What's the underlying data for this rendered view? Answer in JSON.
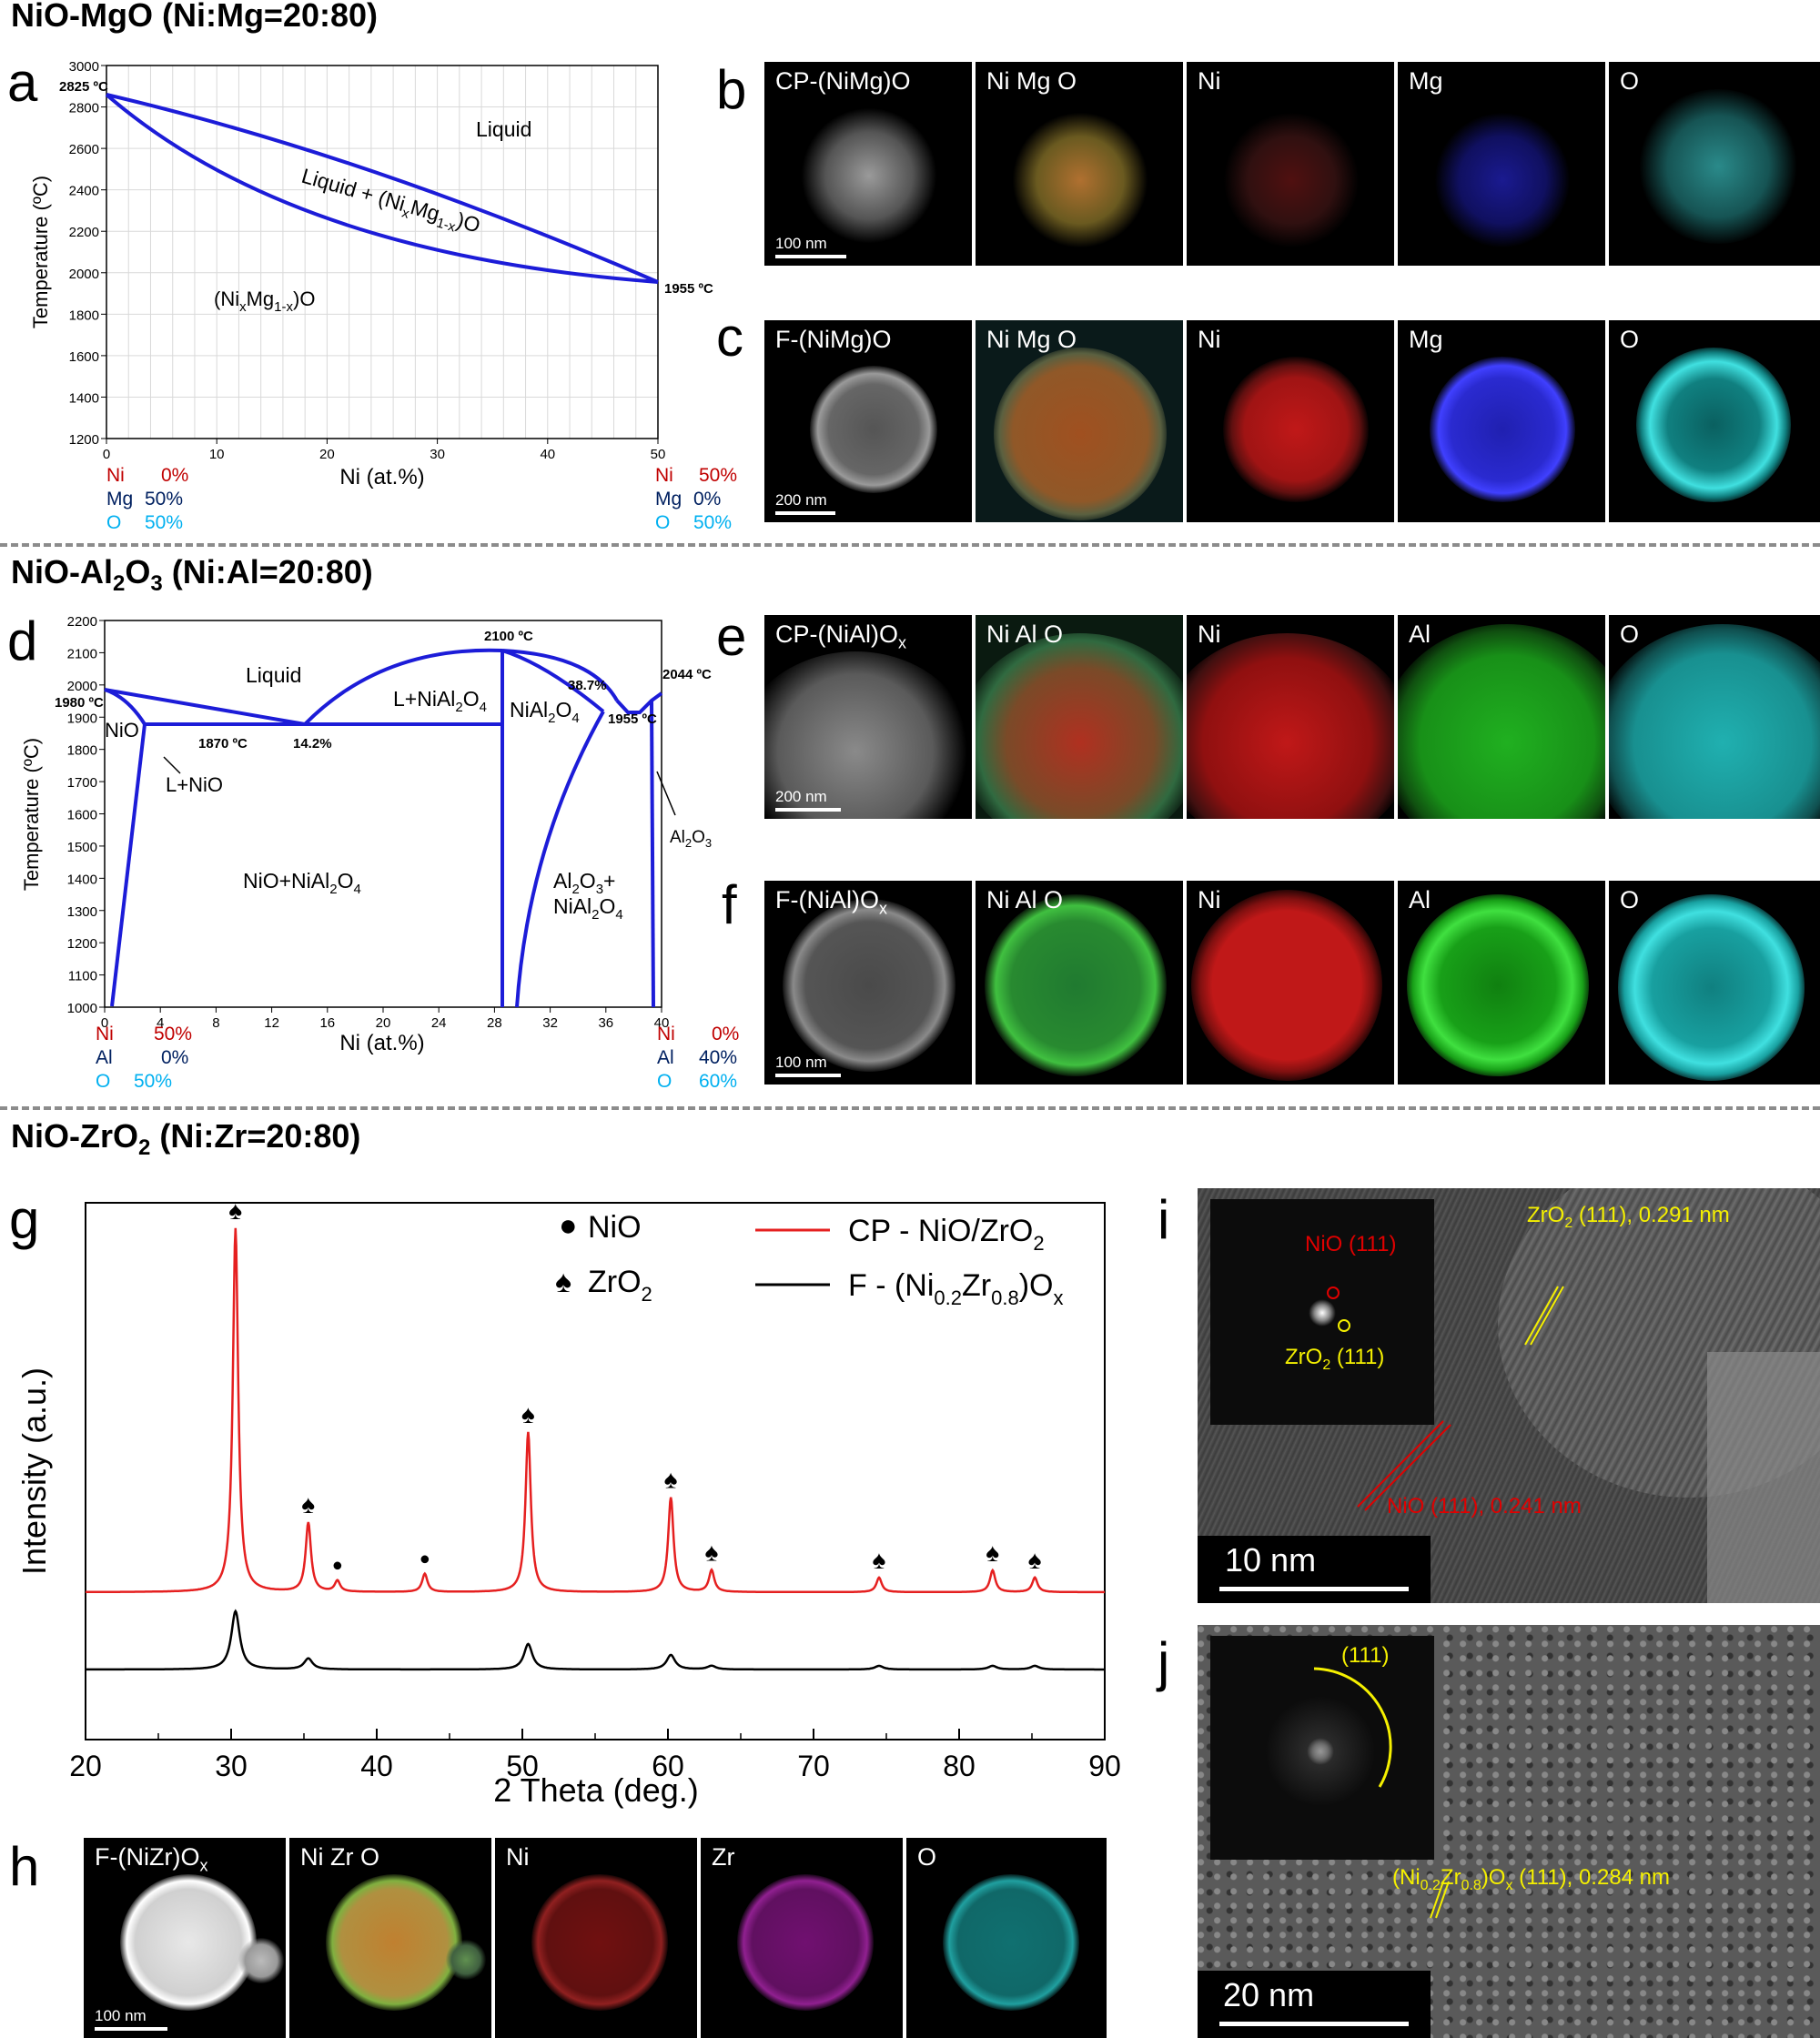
{
  "sections": {
    "mgo": {
      "pre": "NiO-MgO (Ni:Mg=20:80)"
    },
    "al": {
      "pre": "NiO-Al",
      "sub1": "2",
      "mid": "O",
      "sub2": "3",
      "post": " (Ni:Al=20:80)"
    },
    "zr": {
      "pre": "NiO-ZrO",
      "sub1": "2",
      "post": " (Ni:Zr=20:80)"
    }
  },
  "panel_letters": {
    "a": "a",
    "b": "b",
    "c": "c",
    "d": "d",
    "e": "e",
    "f": "f",
    "g": "g",
    "h": "h",
    "i": "i",
    "j": "j"
  },
  "panel_a": {
    "ylabel": "Temperature (ºC)",
    "xlabel": "Ni (at.%)",
    "yticks": [
      "1200",
      "1400",
      "1600",
      "1800",
      "2000",
      "2200",
      "2400",
      "2600",
      "2800",
      "3000"
    ],
    "xticks": [
      "0",
      "10",
      "20",
      "30",
      "40",
      "50"
    ],
    "liquid": "Liquid",
    "two_phase_pre": "Liquid + (Ni",
    "two_phase_x": "x",
    "two_phase_mid": "Mg",
    "two_phase_sub": "1-x",
    "two_phase_post": ")O",
    "solid_pre": "(Ni",
    "solid_x": "x",
    "solid_mid": "Mg",
    "solid_sub": "1-x",
    "solid_post": ")O",
    "t_left": "2825 ºC",
    "t_right": "1955 ºC",
    "comp_left": {
      "ni": "Ni",
      "ni_v": "0%",
      "m": "Mg",
      "m_v": "50%",
      "o": "O",
      "o_v": "50%"
    },
    "comp_right": {
      "ni": "Ni",
      "ni_v": "50%",
      "m": "Mg",
      "m_v": "0%",
      "o": "O",
      "o_v": "50%"
    }
  },
  "panel_b": {
    "tiles": [
      "CP-(NiMg)O",
      "Ni Mg O",
      "Ni",
      "Mg",
      "O"
    ],
    "scale": "100 nm"
  },
  "panel_c": {
    "tiles": [
      "F-(NiMg)O",
      "Ni Mg O",
      "Ni",
      "Mg",
      "O"
    ],
    "scale": "200 nm"
  },
  "panel_d": {
    "ylabel": "Temperature (ºC)",
    "xlabel": "Ni (at.%)",
    "yticks": [
      "1000",
      "1100",
      "1200",
      "1300",
      "1400",
      "1500",
      "1600",
      "1700",
      "1800",
      "1900",
      "2000",
      "2100",
      "2200"
    ],
    "xticks": [
      "0",
      "4",
      "8",
      "12",
      "16",
      "20",
      "24",
      "28",
      "32",
      "36",
      "40"
    ],
    "liquid": "Liquid",
    "l_nial_pre": "L+NiAl",
    "l_nial_sub": "2",
    "l_nial_mid": "O",
    "l_nial_sub2": "4",
    "nial_pre": "NiAl",
    "nial_sub": "2",
    "nial_mid": "O",
    "nial_sub2": "4",
    "nio": "NiO",
    "l_nio": "L+NiO",
    "nio_nial_pre": "NiO+NiAl",
    "nio_nial_sub": "2",
    "nio_nial_mid": "O",
    "nio_nial_sub2": "4",
    "al2o3_nial_l1_pre": "Al",
    "al2o3_nial_l1_sub": "2",
    "al2o3_nial_l1_mid": "O",
    "al2o3_nial_l1_sub2": "3",
    "al2o3_nial_l1_post": "+",
    "al2o3_nial_l2_pre": "NiAl",
    "al2o3_nial_l2_sub": "2",
    "al2o3_nial_l2_mid": "O",
    "al2o3_nial_l2_sub2": "4",
    "al2o3_pre": "Al",
    "al2o3_sub": "2",
    "al2o3_mid": "O",
    "al2o3_sub2": "3",
    "t1980": "1980 ºC",
    "t1870": "1870 ºC",
    "p142": "14.2%",
    "t2100": "2100 ºC",
    "p387": "38.7%",
    "t1955": "1955 ºC",
    "t2044": "2044 ºC",
    "comp_left": {
      "ni": "Ni",
      "ni_v": "50%",
      "m": "Al",
      "m_v": "0%",
      "o": "O",
      "o_v": "50%"
    },
    "comp_right": {
      "ni": "Ni",
      "ni_v": "0%",
      "m": "Al",
      "m_v": "40%",
      "o": "O",
      "o_v": "60%"
    }
  },
  "panel_e": {
    "tile0_pre": "CP-(NiAl)O",
    "tile0_sub": "x",
    "tiles": [
      "Ni Al O",
      "Ni",
      "Al",
      "O"
    ],
    "scale": "200 nm"
  },
  "panel_f": {
    "tile0_pre": "F-(NiAl)O",
    "tile0_sub": "x",
    "tiles": [
      "Ni Al O",
      "Ni",
      "Al",
      "O"
    ],
    "scale": "100 nm"
  },
  "panel_g": {
    "ylabel": "Intensity (a.u.)",
    "xlabel": "2 Theta (deg.)",
    "xticks": [
      "20",
      "30",
      "40",
      "50",
      "60",
      "70",
      "80",
      "90"
    ],
    "legend_nio": "NiO",
    "legend_zro_pre": "ZrO",
    "legend_zro_sub": "2",
    "legend_cp_pre": "CP - NiO/ZrO",
    "legend_cp_sub": "2",
    "legend_f_pre": "F - (Ni",
    "legend_f_sub1": "0.2",
    "legend_f_mid": "Zr",
    "legend_f_sub2": "0.8",
    "legend_f_post": ")O",
    "legend_f_sub3": "x",
    "spade": "♠",
    "dot": "●"
  },
  "panel_h": {
    "tile0_pre": "F-(NiZr)O",
    "tile0_sub": "x",
    "tiles": [
      "Ni Zr O",
      "Ni",
      "Zr",
      "O"
    ],
    "scale": "100 nm"
  },
  "panel_i": {
    "nio_fft": "NiO (111)",
    "zro_fft_pre": "ZrO",
    "zro_fft_sub": "2",
    "zro_fft_post": " (111)",
    "zro_lat_pre": "ZrO",
    "zro_lat_sub": "2",
    "zro_lat_post": " (111), 0.291 nm",
    "nio_lat": "NiO (111), 0.241 nm",
    "scale": "10 nm"
  },
  "panel_j": {
    "ring": "(111)",
    "lat_pre": "(Ni",
    "lat_sub1": "0.2",
    "lat_mid": "Zr",
    "lat_sub2": "0.8",
    "lat_post": ")O",
    "lat_sub3": "x",
    "lat_tail": " (111), 0.284 nm",
    "scale": "20 nm"
  },
  "colors": {
    "curve": "#1c1cd8",
    "ni_red": "#c00000",
    "navy": "#002060",
    "cyan": "#00b0f0",
    "xrd_red": "#e52020",
    "hrtem_yellow": "#f5f000"
  },
  "chart_data": {
    "type": "line",
    "title": "",
    "xlabel": "2 Theta (deg.)",
    "ylabel": "Intensity (a.u.)",
    "xlim": [
      20,
      90
    ],
    "series": [
      {
        "name": "CP - NiO/ZrO2",
        "peaks": [
          {
            "x": 30.3,
            "h": 1.0
          },
          {
            "x": 35.3,
            "h": 0.19
          },
          {
            "x": 37.3,
            "h": 0.03
          },
          {
            "x": 43.3,
            "h": 0.05
          },
          {
            "x": 50.4,
            "h": 0.44
          },
          {
            "x": 60.2,
            "h": 0.26
          },
          {
            "x": 63.0,
            "h": 0.06
          },
          {
            "x": 74.5,
            "h": 0.04
          },
          {
            "x": 82.3,
            "h": 0.06
          },
          {
            "x": 85.2,
            "h": 0.04
          }
        ]
      },
      {
        "name": "F - (Ni0.2Zr0.8)Ox",
        "peaks": [
          {
            "x": 30.3,
            "h": 0.16
          },
          {
            "x": 35.3,
            "h": 0.03
          },
          {
            "x": 50.4,
            "h": 0.07
          },
          {
            "x": 60.2,
            "h": 0.04
          },
          {
            "x": 63.0,
            "h": 0.01
          },
          {
            "x": 74.5,
            "h": 0.01
          },
          {
            "x": 82.3,
            "h": 0.01
          },
          {
            "x": 85.2,
            "h": 0.01
          }
        ]
      }
    ],
    "markers": [
      {
        "phase": "ZrO2",
        "x": [
          30.3,
          35.3,
          50.4,
          60.2,
          63.0,
          74.5,
          82.3,
          85.2
        ]
      },
      {
        "phase": "NiO",
        "x": [
          37.3,
          43.3
        ]
      }
    ]
  }
}
